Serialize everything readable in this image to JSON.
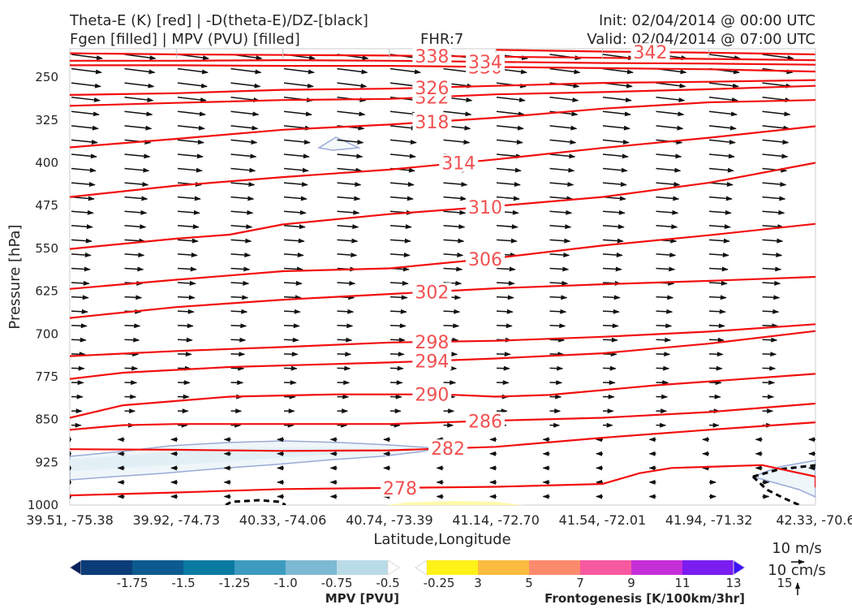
{
  "header": {
    "title_line1": "Theta-E (K) [red] | -D(theta-E)/DZ-[black]",
    "title_line2": "Fgen [filled] | MPV (PVU) [filled]",
    "fhr": "FHR:7",
    "init": "Init: 02/04/2014 @ 00:00 UTC",
    "valid": "Valid: 02/04/2014 @ 07:00 UTC"
  },
  "chart_data": {
    "type": "contour",
    "xlabel": "Latitude,Longitude",
    "ylabel": "Pressure [hPa]",
    "x_ticks": [
      "39.51, -75.38",
      "39.92, -74.73",
      "40.33, -74.06",
      "40.74, -73.39",
      "41.14, -72.70",
      "41.54, -72.01",
      "41.94, -71.32",
      "42.33, -70.6"
    ],
    "y_ticks": [
      250,
      325,
      400,
      475,
      550,
      625,
      700,
      775,
      850,
      925,
      1000
    ],
    "ylim": [
      1000,
      200
    ],
    "theta_e_contours": [
      {
        "level": 278,
        "points": [
          [
            0,
            983
          ],
          [
            2,
            978
          ],
          [
            4,
            972
          ],
          [
            6,
            970
          ],
          [
            8,
            968
          ],
          [
            10,
            963
          ],
          [
            10.7,
            944
          ],
          [
            11.3,
            935
          ],
          [
            12,
            933
          ],
          [
            13,
            930
          ],
          [
            14,
            950
          ],
          [
            14,
            969
          ]
        ]
      },
      {
        "level": 282,
        "points": [
          [
            0,
            902
          ],
          [
            2,
            903
          ],
          [
            4,
            905
          ],
          [
            6,
            904
          ],
          [
            8,
            898
          ],
          [
            10,
            882
          ],
          [
            12,
            868
          ],
          [
            14,
            855
          ]
        ]
      },
      {
        "level": 286,
        "points": [
          [
            0,
            868
          ],
          [
            1,
            860
          ],
          [
            2,
            858
          ],
          [
            4,
            858
          ],
          [
            6,
            858
          ],
          [
            8,
            852
          ],
          [
            10,
            847
          ],
          [
            12,
            837
          ],
          [
            14,
            822
          ]
        ]
      },
      {
        "level": 290,
        "points": [
          [
            0,
            847
          ],
          [
            1,
            825
          ],
          [
            3,
            810
          ],
          [
            5,
            806
          ],
          [
            7,
            806
          ],
          [
            8,
            810
          ],
          [
            9,
            807
          ],
          [
            11,
            790
          ],
          [
            14,
            770
          ]
        ]
      },
      {
        "level": 294,
        "points": [
          [
            0,
            779
          ],
          [
            1,
            768
          ],
          [
            3,
            758
          ],
          [
            6,
            750
          ],
          [
            8,
            743
          ],
          [
            10,
            734
          ],
          [
            12,
            717
          ],
          [
            14,
            695
          ]
        ]
      },
      {
        "level": 298,
        "points": [
          [
            0,
            739
          ],
          [
            2,
            730
          ],
          [
            4,
            723
          ],
          [
            6,
            715
          ],
          [
            8,
            712
          ],
          [
            10,
            705
          ],
          [
            12,
            696
          ],
          [
            14,
            683
          ]
        ]
      },
      {
        "level": 302,
        "points": [
          [
            0,
            672
          ],
          [
            2,
            653
          ],
          [
            4,
            640
          ],
          [
            6,
            630
          ],
          [
            8,
            620
          ],
          [
            10,
            613
          ],
          [
            12,
            607
          ],
          [
            14,
            600
          ]
        ]
      },
      {
        "level": 306,
        "points": [
          [
            0,
            621
          ],
          [
            2,
            605
          ],
          [
            4,
            590
          ],
          [
            6,
            585
          ],
          [
            8,
            567
          ],
          [
            10,
            545
          ],
          [
            12,
            527
          ],
          [
            14,
            507
          ]
        ]
      },
      {
        "level": 310,
        "points": [
          [
            0,
            551
          ],
          [
            2,
            533
          ],
          [
            3,
            526
          ],
          [
            4,
            508
          ],
          [
            6,
            490
          ],
          [
            8,
            476
          ],
          [
            10,
            460
          ],
          [
            12,
            435
          ],
          [
            14,
            400
          ]
        ]
      },
      {
        "level": 314,
        "points": [
          [
            0,
            460
          ],
          [
            2,
            440
          ],
          [
            4,
            425
          ],
          [
            6,
            412
          ],
          [
            8,
            394
          ],
          [
            10,
            374
          ],
          [
            12,
            356
          ],
          [
            14,
            336
          ]
        ]
      },
      {
        "level": 318,
        "points": [
          [
            0,
            373
          ],
          [
            2,
            358
          ],
          [
            4,
            342
          ],
          [
            6,
            333
          ],
          [
            8,
            321
          ],
          [
            10,
            305
          ],
          [
            12,
            294
          ],
          [
            14,
            290
          ]
        ]
      },
      {
        "level": 322,
        "points": [
          [
            0,
            300
          ],
          [
            2,
            295
          ],
          [
            4,
            290
          ],
          [
            6,
            288
          ],
          [
            8,
            280
          ],
          [
            10,
            276
          ],
          [
            12,
            271
          ],
          [
            14,
            265
          ]
        ]
      },
      {
        "level": 326,
        "points": [
          [
            0,
            281
          ],
          [
            2,
            278
          ],
          [
            4,
            272
          ],
          [
            6,
            270
          ],
          [
            8,
            265
          ],
          [
            10,
            260
          ],
          [
            12,
            258
          ],
          [
            14,
            255
          ]
        ]
      },
      {
        "level": 330,
        "points": [
          [
            0,
            229
          ],
          [
            2,
            229
          ],
          [
            4,
            230
          ],
          [
            6,
            230
          ],
          [
            8,
            232
          ],
          [
            10,
            234
          ],
          [
            12,
            236
          ],
          [
            14,
            240
          ]
        ]
      },
      {
        "level": 334,
        "points": [
          [
            0,
            221
          ],
          [
            2,
            221
          ],
          [
            4,
            220
          ],
          [
            6,
            221
          ],
          [
            8,
            223
          ],
          [
            10,
            225
          ],
          [
            12,
            226
          ],
          [
            14,
            228
          ]
        ]
      },
      {
        "level": 338,
        "points": [
          [
            0,
            208
          ],
          [
            2,
            210
          ],
          [
            4,
            211
          ],
          [
            6,
            212
          ],
          [
            8,
            214
          ],
          [
            10,
            216
          ],
          [
            12,
            218
          ],
          [
            14,
            220
          ]
        ]
      },
      {
        "level": 342,
        "points": [
          [
            8,
            202
          ],
          [
            10,
            205
          ],
          [
            12,
            207
          ],
          [
            14,
            210
          ]
        ]
      }
    ],
    "mpv_colorbar": {
      "label": "MPV [PVU]",
      "tick_labels": [
        "-1.75",
        "-1.5",
        "-1.25",
        "-1.0",
        "-0.75",
        "-0.5",
        "-0.25"
      ],
      "colors": [
        "#08215c",
        "#0b3c78",
        "#0c5a8f",
        "#0b7aa3",
        "#3d9bc0",
        "#7db9d2",
        "#b9dbe7",
        "#ffffff"
      ]
    },
    "fgen_colorbar": {
      "label": "Frontogenesis [K/100km/3hr]",
      "tick_labels": [
        "3",
        "5",
        "7",
        "9",
        "11",
        "13",
        "15"
      ],
      "colors": [
        "#ffffff",
        "#fff219",
        "#fbbb3f",
        "#fc8a6c",
        "#f759a0",
        "#c52fd8",
        "#7b1cf0",
        "#3d12f8"
      ]
    },
    "wind_scale": {
      "horizontal": "10 m/s",
      "vertical": "10 cm/s"
    }
  }
}
